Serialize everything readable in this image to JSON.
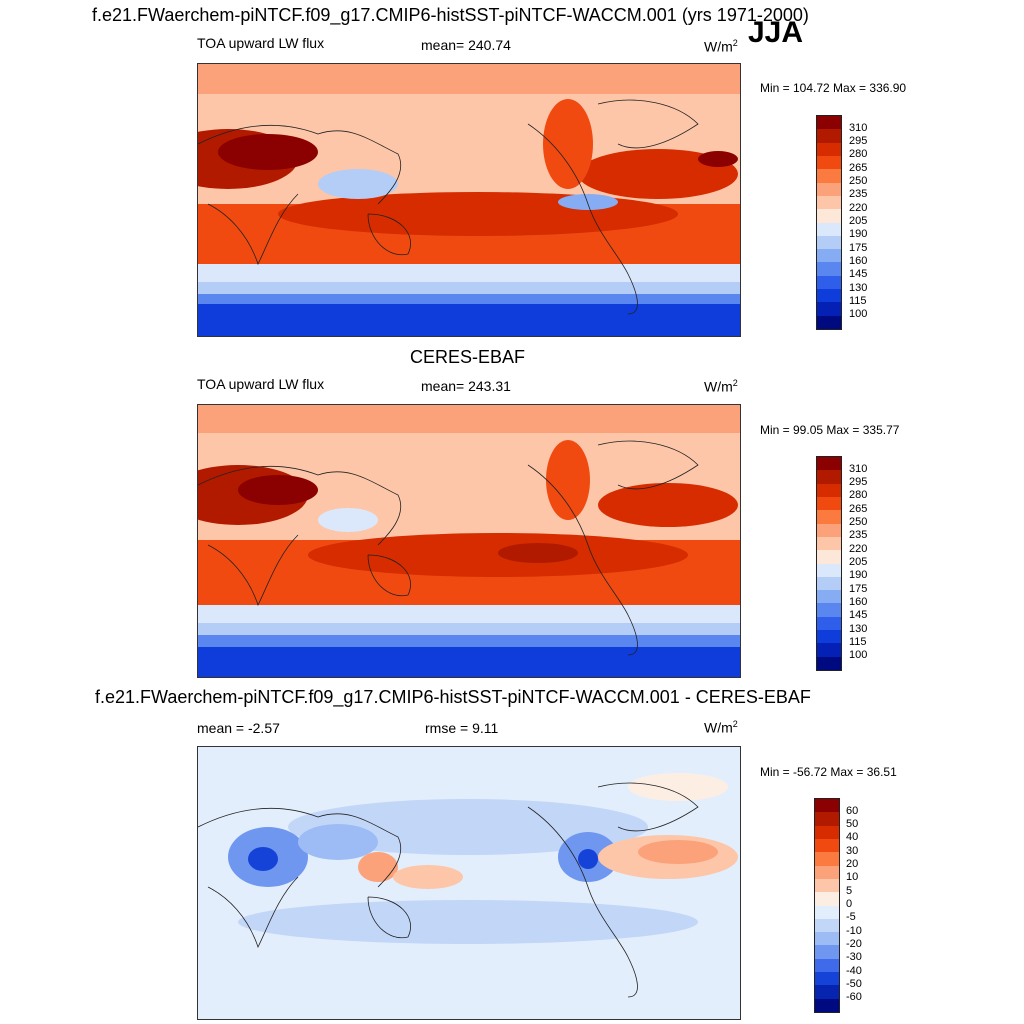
{
  "figure": {
    "season": "JJA",
    "units": "W/m",
    "units_sup": "2"
  },
  "panel1": {
    "title": "f.e21.FWaerchem-piNTCF.f09_g17.CMIP6-histSST-piNTCF-WACCM.001 (yrs 1971-2000)",
    "variable": "TOA upward LW flux",
    "mean": "mean= 240.74",
    "minmax": "Min = 104.72 Max = 336.90"
  },
  "panel2": {
    "title": "CERES-EBAF",
    "variable": "TOA upward LW flux",
    "mean": "mean= 243.31",
    "minmax": "Min =  99.05 Max = 335.77"
  },
  "panel3": {
    "title": "f.e21.FWaerchem-piNTCF.f09_g17.CMIP6-histSST-piNTCF-WACCM.001 - CERES-EBAF",
    "mean": "mean =  -2.57",
    "rmse": "rmse =   9.11",
    "minmax": "Min = -56.72 Max =  36.51"
  },
  "colorbar_abs": {
    "labels": [
      "310",
      "295",
      "280",
      "265",
      "250",
      "235",
      "220",
      "205",
      "190",
      "175",
      "160",
      "145",
      "130",
      "115",
      "100"
    ],
    "colors": [
      "#8b0000",
      "#b21a00",
      "#d62c00",
      "#f04a10",
      "#fa7a40",
      "#fca27a",
      "#fdc6a8",
      "#fde7d8",
      "#dbe8fb",
      "#b4cdf7",
      "#86acf3",
      "#5a86ef",
      "#2f5fea",
      "#0f3ddb",
      "#0520b4",
      "#000a80"
    ]
  },
  "colorbar_diff": {
    "labels": [
      "60",
      "50",
      "40",
      "30",
      "20",
      "10",
      "5",
      "0",
      "-5",
      "-10",
      "-20",
      "-30",
      "-40",
      "-50",
      "-60"
    ],
    "colors": [
      "#8b0000",
      "#b21a00",
      "#d62c00",
      "#f04a10",
      "#fa7a40",
      "#fca27a",
      "#fdc6a8",
      "#fdeee4",
      "#e3eefc",
      "#c2d6f8",
      "#9dbcf5",
      "#6f97f0",
      "#3f6bea",
      "#1543d8",
      "#0624b0",
      "#000a80"
    ]
  }
}
